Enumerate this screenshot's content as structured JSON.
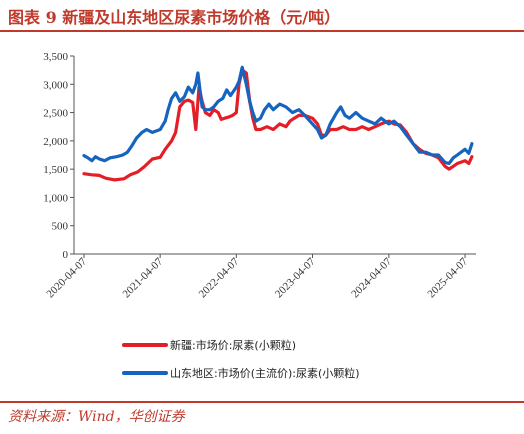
{
  "header": {
    "title": "图表 9 新疆及山东地区尿素市场价格（元/吨）"
  },
  "footer": {
    "source": "资料来源：Wind，华创证券"
  },
  "colors": {
    "accent": "#c0392b",
    "series_xinjiang": "#e41e26",
    "series_shandong": "#1565c0"
  },
  "chart_data": {
    "type": "line",
    "title": "图表 9 新疆及山东地区尿素市场价格（元/吨）",
    "ylim": [
      0,
      3500
    ],
    "yticks": [
      "0",
      "500",
      "1,000",
      "1,500",
      "2,000",
      "2,500",
      "3,000",
      "3,500"
    ],
    "xticks": [
      "2020-04-07",
      "2021-04-07",
      "2022-04-07",
      "2023-04-07",
      "2024-04-07",
      "2025-04-07"
    ],
    "xlim": [
      "2020-04-07",
      "2025-05-20"
    ],
    "grid": false,
    "legend_position": "bottom",
    "series": [
      {
        "name": "新疆:市场价:尿素(小颗粒)",
        "color": "#e41e26",
        "points": [
          [
            "2020-04-07",
            1420
          ],
          [
            "2020-05-15",
            1400
          ],
          [
            "2020-06-20",
            1390
          ],
          [
            "2020-07-20",
            1340
          ],
          [
            "2020-09-01",
            1310
          ],
          [
            "2020-10-15",
            1330
          ],
          [
            "2020-11-15",
            1400
          ],
          [
            "2020-12-20",
            1450
          ],
          [
            "2021-01-20",
            1540
          ],
          [
            "2021-03-01",
            1680
          ],
          [
            "2021-04-07",
            1710
          ],
          [
            "2021-05-01",
            1850
          ],
          [
            "2021-06-01",
            2000
          ],
          [
            "2021-06-20",
            2150
          ],
          [
            "2021-07-10",
            2600
          ],
          [
            "2021-08-01",
            2700
          ],
          [
            "2021-08-20",
            2720
          ],
          [
            "2021-09-10",
            2680
          ],
          [
            "2021-09-25",
            2200
          ],
          [
            "2021-10-10",
            2950
          ],
          [
            "2021-10-25",
            2700
          ],
          [
            "2021-11-10",
            2500
          ],
          [
            "2021-12-01",
            2450
          ],
          [
            "2021-12-20",
            2550
          ],
          [
            "2022-01-10",
            2500
          ],
          [
            "2022-01-25",
            2380
          ],
          [
            "2022-02-10",
            2400
          ],
          [
            "2022-03-01",
            2420
          ],
          [
            "2022-03-20",
            2450
          ],
          [
            "2022-04-07",
            2500
          ],
          [
            "2022-04-20",
            3000
          ],
          [
            "2022-05-05",
            3250
          ],
          [
            "2022-05-25",
            3200
          ],
          [
            "2022-06-10",
            2700
          ],
          [
            "2022-06-25",
            2400
          ],
          [
            "2022-07-10",
            2200
          ],
          [
            "2022-08-01",
            2200
          ],
          [
            "2022-09-01",
            2250
          ],
          [
            "2022-10-01",
            2200
          ],
          [
            "2022-11-01",
            2300
          ],
          [
            "2022-12-01",
            2250
          ],
          [
            "2022-12-20",
            2350
          ],
          [
            "2023-01-10",
            2400
          ],
          [
            "2023-02-01",
            2450
          ],
          [
            "2023-03-01",
            2450
          ],
          [
            "2023-04-07",
            2400
          ],
          [
            "2023-05-01",
            2300
          ],
          [
            "2023-05-20",
            2100
          ],
          [
            "2023-06-10",
            2100
          ],
          [
            "2023-07-01",
            2200
          ],
          [
            "2023-08-01",
            2200
          ],
          [
            "2023-09-01",
            2250
          ],
          [
            "2023-10-01",
            2200
          ],
          [
            "2023-11-01",
            2200
          ],
          [
            "2023-12-01",
            2250
          ],
          [
            "2024-01-01",
            2200
          ],
          [
            "2024-02-01",
            2250
          ],
          [
            "2024-03-01",
            2300
          ],
          [
            "2024-04-07",
            2350
          ],
          [
            "2024-05-01",
            2300
          ],
          [
            "2024-06-01",
            2280
          ],
          [
            "2024-07-01",
            2150
          ],
          [
            "2024-08-01",
            1950
          ],
          [
            "2024-09-01",
            1850
          ],
          [
            "2024-10-01",
            1780
          ],
          [
            "2024-11-01",
            1750
          ],
          [
            "2024-12-01",
            1700
          ],
          [
            "2025-01-01",
            1550
          ],
          [
            "2025-01-20",
            1500
          ],
          [
            "2025-02-10",
            1550
          ],
          [
            "2025-03-01",
            1600
          ],
          [
            "2025-04-07",
            1650
          ],
          [
            "2025-04-25",
            1600
          ],
          [
            "2025-05-10",
            1720
          ]
        ]
      },
      {
        "name": "山东地区:市场价(主流价):尿素(小颗粒)",
        "color": "#1565c0",
        "points": [
          [
            "2020-04-07",
            1740
          ],
          [
            "2020-04-25",
            1700
          ],
          [
            "2020-05-15",
            1650
          ],
          [
            "2020-06-01",
            1720
          ],
          [
            "2020-06-20",
            1680
          ],
          [
            "2020-07-15",
            1650
          ],
          [
            "2020-08-10",
            1700
          ],
          [
            "2020-09-10",
            1720
          ],
          [
            "2020-10-10",
            1750
          ],
          [
            "2020-11-01",
            1800
          ],
          [
            "2020-11-20",
            1900
          ],
          [
            "2020-12-15",
            2050
          ],
          [
            "2021-01-10",
            2150
          ],
          [
            "2021-02-01",
            2200
          ],
          [
            "2021-03-01",
            2150
          ],
          [
            "2021-04-07",
            2200
          ],
          [
            "2021-05-01",
            2350
          ],
          [
            "2021-05-15",
            2550
          ],
          [
            "2021-06-01",
            2750
          ],
          [
            "2021-06-20",
            2850
          ],
          [
            "2021-07-10",
            2700
          ],
          [
            "2021-08-01",
            2780
          ],
          [
            "2021-08-20",
            2950
          ],
          [
            "2021-09-10",
            2850
          ],
          [
            "2021-09-25",
            3000
          ],
          [
            "2021-10-05",
            3200
          ],
          [
            "2021-10-25",
            2600
          ],
          [
            "2021-11-10",
            2550
          ],
          [
            "2021-12-01",
            2550
          ],
          [
            "2021-12-20",
            2600
          ],
          [
            "2022-01-10",
            2700
          ],
          [
            "2022-02-01",
            2750
          ],
          [
            "2022-02-20",
            2900
          ],
          [
            "2022-03-10",
            2800
          ],
          [
            "2022-04-07",
            2950
          ],
          [
            "2022-04-20",
            3050
          ],
          [
            "2022-05-05",
            3300
          ],
          [
            "2022-05-25",
            3000
          ],
          [
            "2022-06-10",
            2700
          ],
          [
            "2022-06-25",
            2500
          ],
          [
            "2022-07-10",
            2350
          ],
          [
            "2022-08-01",
            2400
          ],
          [
            "2022-08-20",
            2550
          ],
          [
            "2022-09-10",
            2650
          ],
          [
            "2022-10-01",
            2550
          ],
          [
            "2022-11-01",
            2650
          ],
          [
            "2022-12-01",
            2600
          ],
          [
            "2023-01-01",
            2500
          ],
          [
            "2023-02-01",
            2550
          ],
          [
            "2023-03-01",
            2450
          ],
          [
            "2023-04-07",
            2300
          ],
          [
            "2023-05-01",
            2200
          ],
          [
            "2023-05-20",
            2050
          ],
          [
            "2023-06-10",
            2100
          ],
          [
            "2023-07-01",
            2300
          ],
          [
            "2023-08-01",
            2500
          ],
          [
            "2023-08-20",
            2600
          ],
          [
            "2023-09-10",
            2450
          ],
          [
            "2023-10-01",
            2400
          ],
          [
            "2023-11-01",
            2500
          ],
          [
            "2023-12-01",
            2400
          ],
          [
            "2024-01-01",
            2350
          ],
          [
            "2024-02-01",
            2300
          ],
          [
            "2024-03-01",
            2400
          ],
          [
            "2024-04-07",
            2300
          ],
          [
            "2024-05-01",
            2350
          ],
          [
            "2024-06-01",
            2250
          ],
          [
            "2024-07-01",
            2100
          ],
          [
            "2024-08-01",
            1950
          ],
          [
            "2024-09-01",
            1800
          ],
          [
            "2024-10-01",
            1800
          ],
          [
            "2024-11-01",
            1750
          ],
          [
            "2024-12-01",
            1750
          ],
          [
            "2025-01-01",
            1620
          ],
          [
            "2025-01-20",
            1600
          ],
          [
            "2025-02-10",
            1700
          ],
          [
            "2025-03-01",
            1750
          ],
          [
            "2025-04-07",
            1850
          ],
          [
            "2025-04-25",
            1780
          ],
          [
            "2025-05-10",
            1950
          ]
        ]
      }
    ]
  }
}
